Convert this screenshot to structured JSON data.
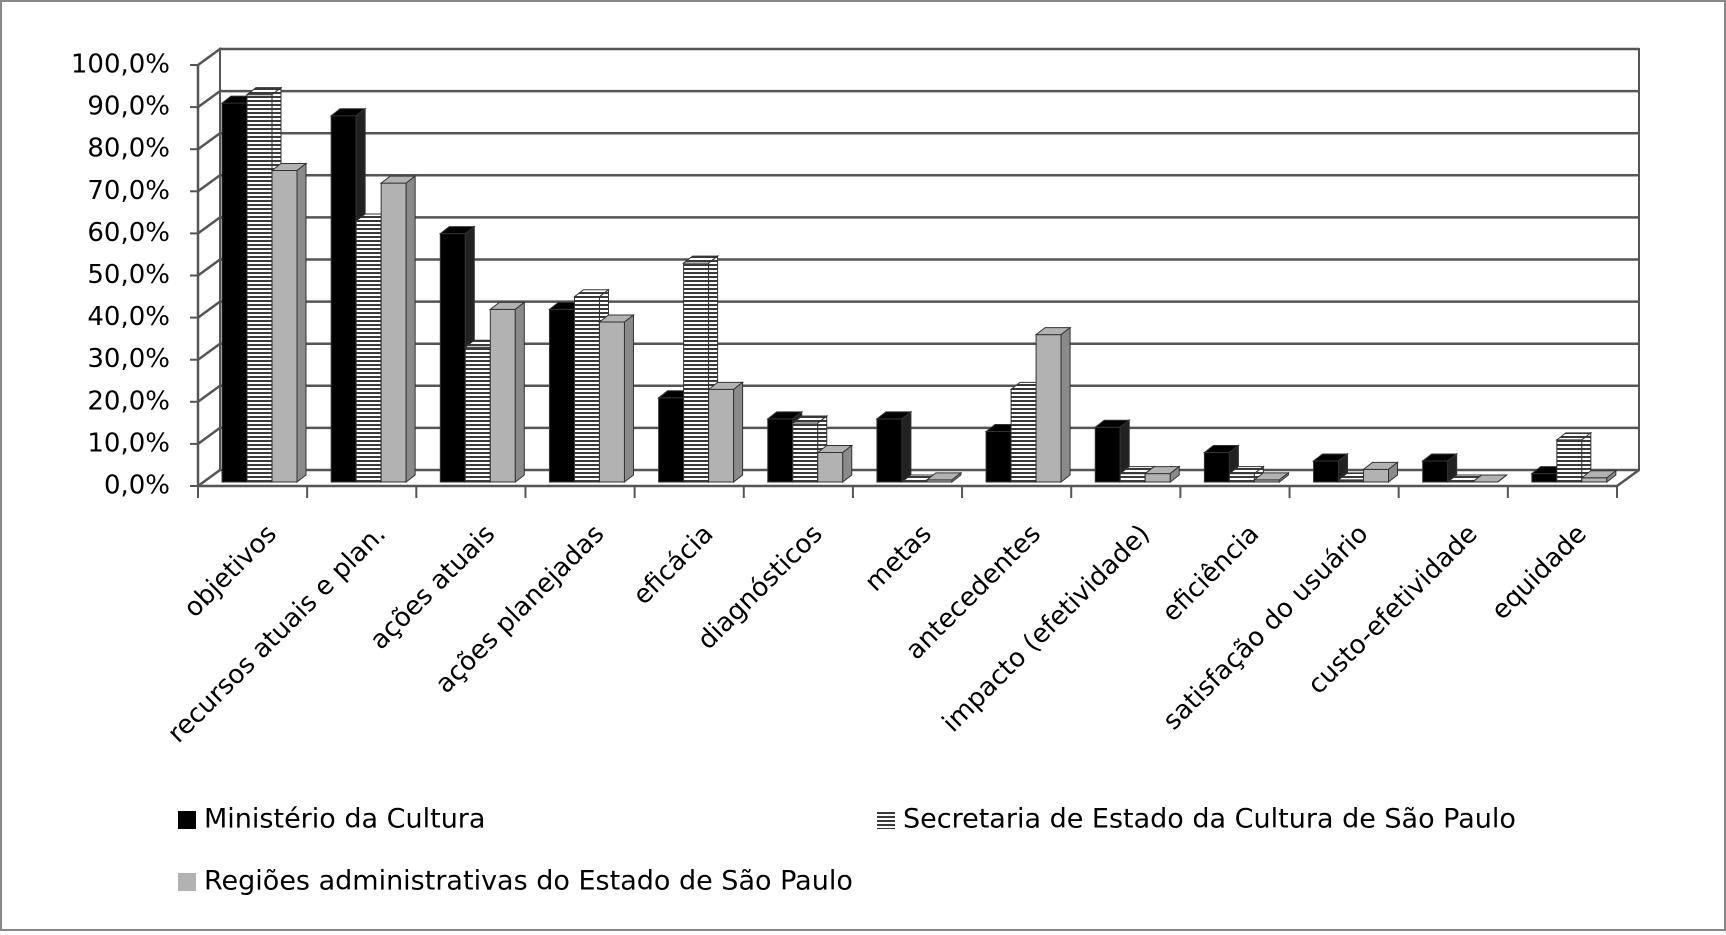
{
  "chart_data": {
    "type": "bar",
    "categories": [
      "objetivos",
      "recursos atuais e plan.",
      "ações atuais",
      "ações planejadas",
      "eficácia",
      "diagnósticos",
      "metas",
      "antecedentes",
      "impacto (efetividade)",
      "eficiência",
      "satisfação do usuário",
      "custo-efetividade",
      "equidade"
    ],
    "series": [
      {
        "name": "Ministério da Cultura",
        "color": "#000000",
        "values": [
          90,
          87,
          59,
          41,
          20,
          15,
          15,
          12,
          13,
          7,
          5,
          5,
          2
        ]
      },
      {
        "name": "Secretaria de Estado da Cultura de São Paulo",
        "color": "#3a3a3a",
        "values": [
          92,
          62,
          32,
          44,
          52,
          14,
          0,
          22,
          2,
          2,
          0.5,
          0,
          10
        ]
      },
      {
        "name": "Regiões administrativas do Estado de São Paulo",
        "color": "#b2b2b2",
        "values": [
          74,
          71,
          41,
          38,
          22,
          7,
          0.5,
          35,
          2,
          0.5,
          3,
          0,
          1
        ]
      }
    ],
    "ylim": [
      0,
      100
    ],
    "yticks": [
      {
        "value": 0,
        "label": "0,0%"
      },
      {
        "value": 10,
        "label": "10,0%"
      },
      {
        "value": 20,
        "label": "20,0%"
      },
      {
        "value": 30,
        "label": "30,0%"
      },
      {
        "value": 40,
        "label": "40,0%"
      },
      {
        "value": 50,
        "label": "50,0%"
      },
      {
        "value": 60,
        "label": "60,0%"
      },
      {
        "value": 70,
        "label": "70,0%"
      },
      {
        "value": 80,
        "label": "80,0%"
      },
      {
        "value": 90,
        "label": "90,0%"
      },
      {
        "value": 100,
        "label": "100,0%"
      }
    ],
    "grid": true
  }
}
